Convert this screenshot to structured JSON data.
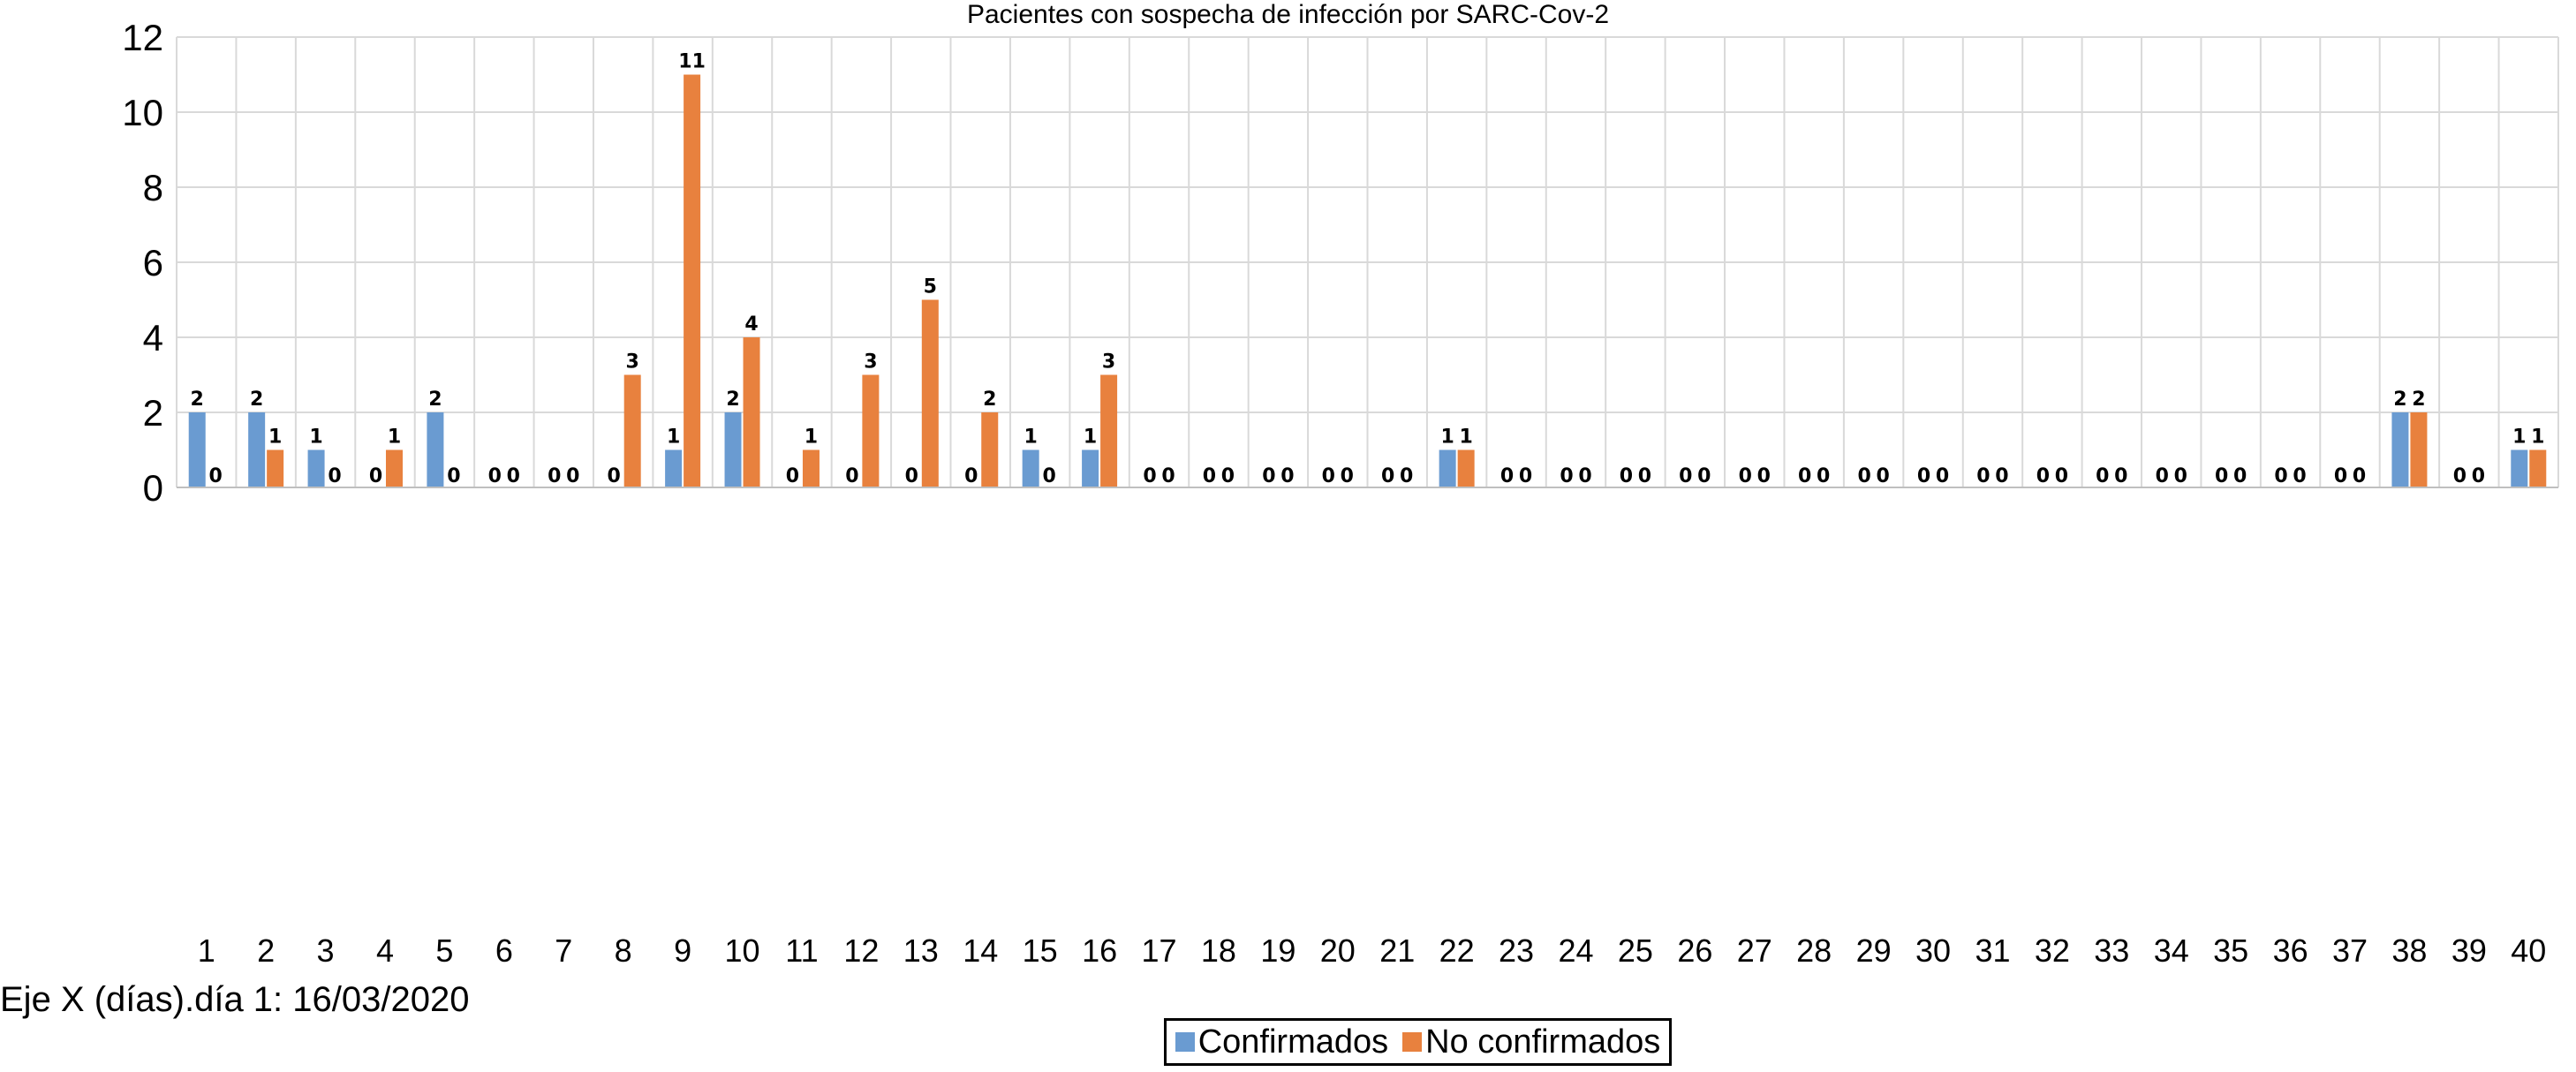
{
  "chart_data": {
    "type": "bar",
    "title": "Pacientes con sospecha de infección por SARC-Cov-2",
    "xlabel": "Eje X (días).día 1: 16/03/2020",
    "ylabel": "",
    "ylim": [
      0,
      12
    ],
    "yticks": [
      "0",
      "2",
      "4",
      "6",
      "8",
      "10",
      "12"
    ],
    "grid": true,
    "legend_position": "bottom",
    "categories": [
      "1",
      "2",
      "3",
      "4",
      "5",
      "6",
      "7",
      "8",
      "9",
      "10",
      "11",
      "12",
      "13",
      "14",
      "15",
      "16",
      "17",
      "18",
      "19",
      "20",
      "21",
      "22",
      "23",
      "24",
      "25",
      "26",
      "27",
      "28",
      "29",
      "30",
      "31",
      "32",
      "33",
      "34",
      "35",
      "36",
      "37",
      "38",
      "39",
      "40"
    ],
    "series": [
      {
        "name": "Confirmados",
        "color": "#6a9bd1",
        "values": [
          2,
          2,
          1,
          0,
          2,
          0,
          0,
          0,
          1,
          2,
          0,
          0,
          0,
          0,
          1,
          1,
          0,
          0,
          0,
          0,
          0,
          1,
          0,
          0,
          0,
          0,
          0,
          0,
          0,
          0,
          0,
          0,
          0,
          0,
          0,
          0,
          0,
          2,
          0,
          1
        ]
      },
      {
        "name": "No confirmados",
        "color": "#e8813e",
        "values": [
          0,
          1,
          0,
          1,
          0,
          0,
          0,
          3,
          11,
          4,
          1,
          3,
          5,
          2,
          0,
          3,
          0,
          0,
          0,
          0,
          0,
          1,
          0,
          0,
          0,
          0,
          0,
          0,
          0,
          0,
          0,
          0,
          0,
          0,
          0,
          0,
          0,
          2,
          0,
          1
        ]
      }
    ]
  }
}
